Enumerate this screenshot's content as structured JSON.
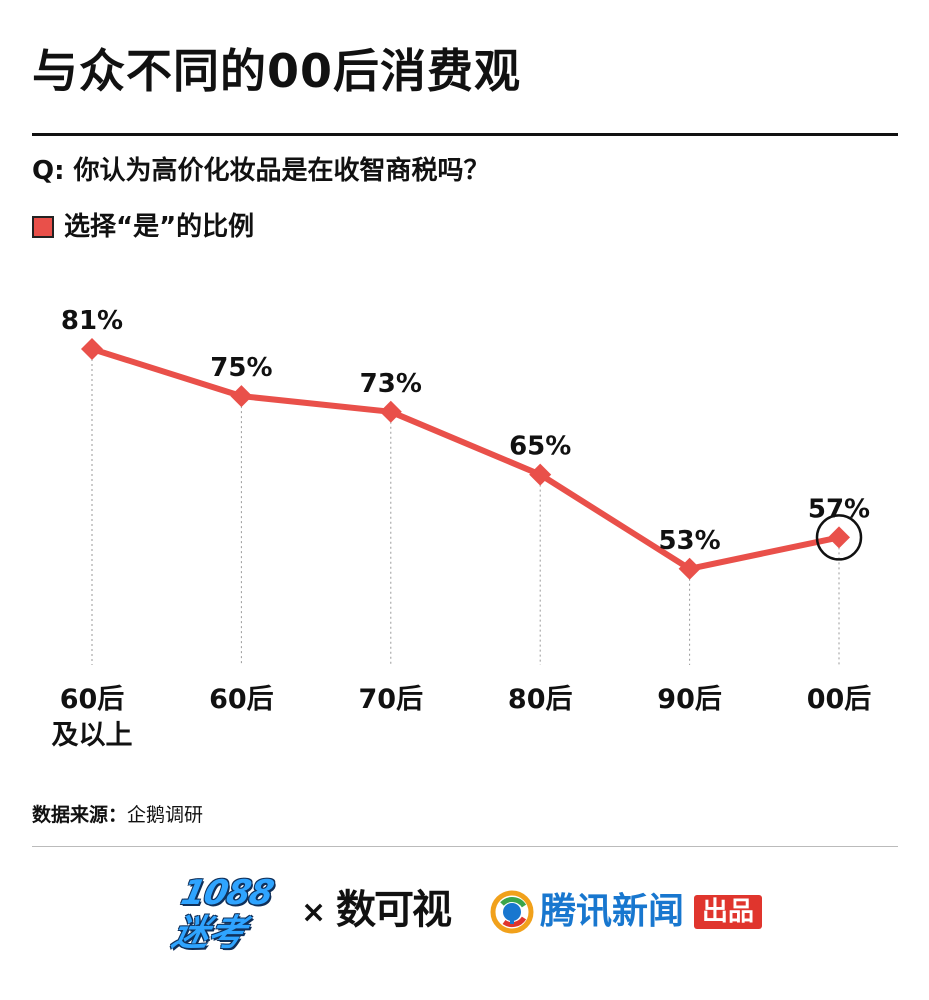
{
  "header": {
    "title": "与众不同的00后消费观",
    "question": "Q: 你认为高价化妆品是在收智商税吗？"
  },
  "legend": {
    "label": "选择“是”的比例",
    "color": "#e9504a"
  },
  "chart_data": {
    "type": "line",
    "categories": [
      "60后\n及以上",
      "60后",
      "70后",
      "80后",
      "90后",
      "00后"
    ],
    "series": [
      {
        "name": "选择“是”的比例",
        "values": [
          81,
          75,
          73,
          65,
          53,
          57
        ]
      }
    ],
    "data_labels": [
      "81%",
      "75%",
      "73%",
      "65%",
      "53%",
      "57%"
    ],
    "unit": "%",
    "highlighted_category": "00后",
    "title": "与众不同的00后消费观",
    "xlabel": "",
    "ylabel": "",
    "grid": false,
    "colors": {
      "line": "#e9504a",
      "marker": "#e9504a",
      "dropline": "#999999",
      "highlight_ring": "#111111"
    }
  },
  "source": {
    "label": "数据来源：",
    "value": "企鹅调研"
  },
  "footer": {
    "logo_left_top": "1088",
    "logo_left_bottom": "迷考",
    "separator": "×",
    "logo_middle": "数可视",
    "logo_right_name": "腾讯新闻",
    "logo_right_badge": "出品",
    "logo_right_color": "#1877cf",
    "badge_color": "#e0352d"
  }
}
